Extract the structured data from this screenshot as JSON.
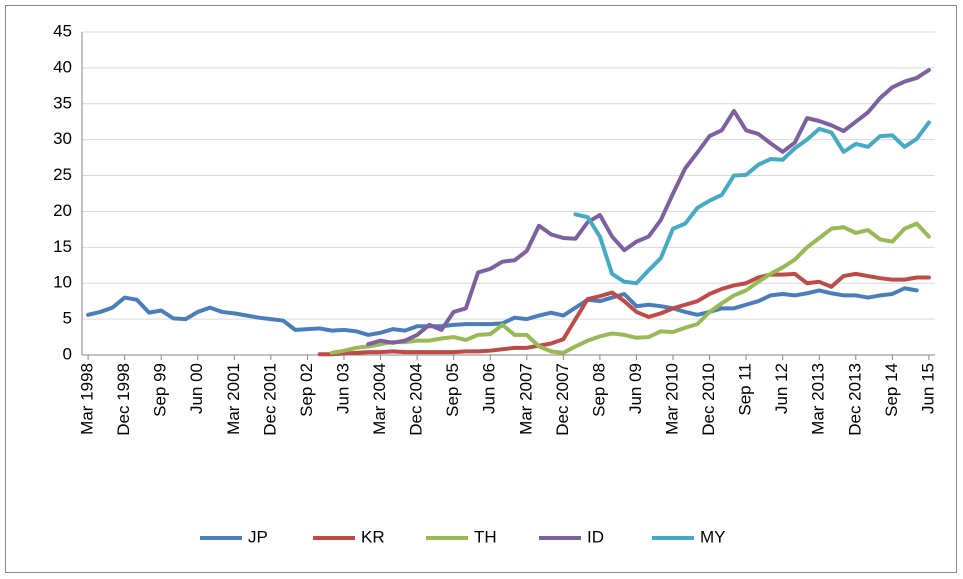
{
  "chart_data": {
    "type": "line",
    "categories": [
      "Mar 1998",
      null,
      null,
      "Dec 1998",
      null,
      null,
      "Sep 99",
      null,
      null,
      "Jun 00",
      null,
      null,
      "Mar 2001",
      null,
      null,
      "Dec 2001",
      null,
      null,
      "Sep 02",
      null,
      null,
      "Jun 03",
      null,
      null,
      "Mar 2004",
      null,
      null,
      "Dec 2004",
      null,
      null,
      "Sep 05",
      null,
      null,
      "Jun 06",
      null,
      null,
      "Mar 2007",
      null,
      null,
      "Dec 2007",
      null,
      null,
      "Sep 08",
      null,
      null,
      "Jun 09",
      null,
      null,
      "Mar 2010",
      null,
      null,
      "Dec 2010",
      null,
      null,
      "Sep 11",
      null,
      null,
      "Jun 12",
      null,
      null,
      "Mar 2013",
      null,
      null,
      "Dec 2013",
      null,
      null,
      "Sep 14",
      null,
      null,
      "Jun 15"
    ],
    "series": [
      {
        "name": "JP",
        "color": "#4a7ebb",
        "values": [
          5.6,
          6.0,
          6.6,
          8.0,
          7.7,
          5.9,
          6.2,
          5.1,
          5.0,
          6.0,
          6.6,
          6.0,
          5.8,
          5.5,
          5.2,
          5.0,
          4.8,
          3.5,
          3.6,
          3.7,
          3.4,
          3.5,
          3.3,
          2.8,
          3.1,
          3.6,
          3.4,
          4.0,
          4.0,
          4.0,
          4.2,
          4.3,
          4.3,
          4.3,
          4.4,
          5.2,
          5.0,
          5.5,
          5.9,
          5.5,
          6.6,
          7.7,
          7.5,
          8.0,
          8.5,
          6.8,
          7.0,
          6.8,
          6.5,
          6.0,
          5.6,
          6.0,
          6.5,
          6.5,
          7.0,
          7.5,
          8.3,
          8.5,
          8.3,
          8.6,
          9.0,
          8.6,
          8.3,
          8.3,
          8.0,
          8.3,
          8.5,
          9.3,
          9.0,
          null
        ]
      },
      {
        "name": "KR",
        "color": "#be4b48",
        "values": [
          null,
          null,
          null,
          null,
          null,
          null,
          null,
          null,
          null,
          null,
          null,
          null,
          null,
          null,
          null,
          null,
          null,
          null,
          null,
          0.1,
          0.1,
          0.2,
          0.3,
          0.4,
          0.4,
          0.5,
          0.4,
          0.4,
          0.4,
          0.4,
          0.4,
          0.5,
          0.5,
          0.6,
          0.8,
          1.0,
          1.0,
          1.3,
          1.6,
          2.2,
          5.0,
          7.8,
          8.2,
          8.7,
          7.5,
          6.0,
          5.3,
          5.8,
          6.5,
          7.0,
          7.5,
          8.5,
          9.2,
          9.7,
          10.0,
          10.8,
          11.2,
          11.2,
          11.3,
          10.0,
          10.2,
          9.5,
          11.0,
          11.3,
          11.0,
          10.7,
          10.5,
          10.5,
          10.8,
          10.8
        ]
      },
      {
        "name": "TH",
        "color": "#98b954",
        "values": [
          null,
          null,
          null,
          null,
          null,
          null,
          null,
          null,
          null,
          null,
          null,
          null,
          null,
          null,
          null,
          null,
          null,
          null,
          null,
          null,
          0.3,
          0.6,
          1.0,
          1.2,
          1.5,
          1.8,
          1.8,
          2.0,
          2.0,
          2.3,
          2.5,
          2.1,
          2.8,
          2.9,
          4.2,
          2.8,
          2.8,
          1.2,
          0.5,
          0.3,
          1.2,
          2.0,
          2.6,
          3.0,
          2.8,
          2.4,
          2.5,
          3.3,
          3.2,
          3.8,
          4.3,
          6.0,
          7.2,
          8.3,
          9.0,
          10.2,
          11.3,
          12.2,
          13.3,
          15.0,
          16.3,
          17.6,
          17.8,
          17.0,
          17.4,
          16.1,
          15.8,
          17.6,
          18.3,
          16.5
        ]
      },
      {
        "name": "ID",
        "color": "#7d60a0",
        "values": [
          null,
          null,
          null,
          null,
          null,
          null,
          null,
          null,
          null,
          null,
          null,
          null,
          null,
          null,
          null,
          null,
          null,
          null,
          null,
          null,
          null,
          null,
          null,
          1.5,
          2.0,
          1.7,
          2.0,
          2.8,
          4.2,
          3.5,
          6.0,
          6.5,
          11.5,
          12.0,
          13.0,
          13.2,
          14.5,
          18.0,
          16.8,
          16.3,
          16.2,
          18.5,
          19.5,
          16.5,
          14.6,
          15.8,
          16.5,
          18.8,
          22.5,
          26.0,
          28.2,
          30.5,
          31.3,
          34.0,
          31.3,
          30.8,
          29.5,
          28.3,
          29.6,
          33.0,
          32.6,
          32.0,
          31.2,
          32.5,
          33.8,
          35.8,
          37.3,
          38.1,
          38.6,
          39.7
        ]
      },
      {
        "name": "MY",
        "color": "#46aac5",
        "values": [
          null,
          null,
          null,
          null,
          null,
          null,
          null,
          null,
          null,
          null,
          null,
          null,
          null,
          null,
          null,
          null,
          null,
          null,
          null,
          null,
          null,
          null,
          null,
          null,
          null,
          null,
          null,
          null,
          null,
          null,
          null,
          null,
          null,
          null,
          null,
          null,
          null,
          null,
          null,
          null,
          19.6,
          19.2,
          16.5,
          11.3,
          10.2,
          10.0,
          11.8,
          13.5,
          17.6,
          18.3,
          20.5,
          21.5,
          22.3,
          25.0,
          25.1,
          26.5,
          27.3,
          27.2,
          28.8,
          30.0,
          31.5,
          31.0,
          28.3,
          29.4,
          29.0,
          30.5,
          30.6,
          29.0,
          30.1,
          32.4
        ]
      }
    ],
    "ylim": [
      0,
      45
    ],
    "yticks": [
      0,
      5,
      10,
      15,
      20,
      25,
      30,
      35,
      40,
      45
    ],
    "grid": true,
    "legend": "bottom"
  }
}
